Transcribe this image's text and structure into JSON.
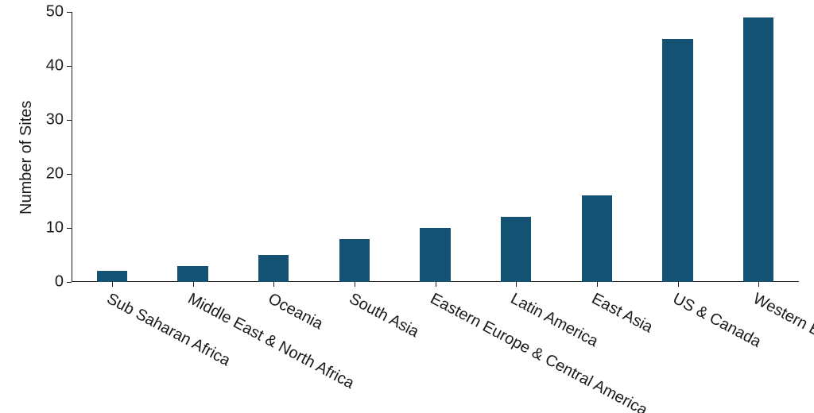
{
  "chart": {
    "type": "bar",
    "ylabel": "Number of Sites",
    "ylabel_fontsize": 20,
    "tick_fontsize": 20,
    "ylim": [
      0,
      50
    ],
    "ytick_step": 10,
    "background_color": "#ffffff",
    "axis_color": "#1a1a1a",
    "text_color": "#1a1a1a",
    "bar_color": "#145374",
    "bar_width_ratio": 0.38,
    "x_label_rotation_deg": 28,
    "categories": [
      "Sub Saharan Africa",
      "Middle East & North Africa",
      "Oceania",
      "South Asia",
      "Eastern Europe & Central America",
      "Latin America",
      "East Asia",
      "US & Canada",
      "Western Europe"
    ],
    "values": [
      2,
      3,
      5,
      8,
      10,
      12,
      16,
      45,
      49
    ]
  }
}
